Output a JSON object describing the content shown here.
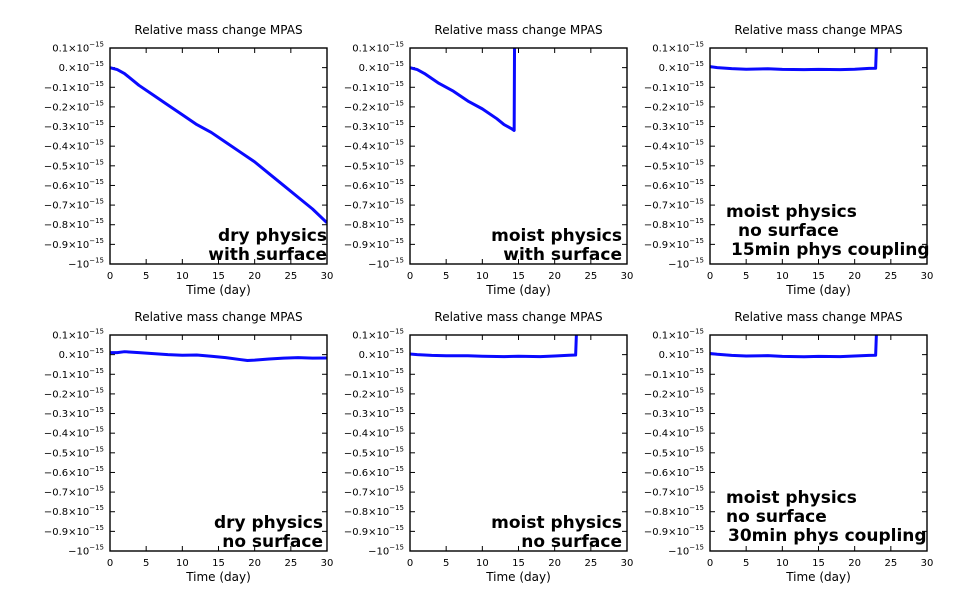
{
  "chart_data": [
    {
      "type": "line",
      "title": "Relative mass change MPAS",
      "xlabel": "Time (day)",
      "ylabel": "",
      "xlim": [
        0,
        30
      ],
      "ylim": [
        -1.0,
        0.1
      ],
      "xticks": [
        "0",
        "5",
        "10",
        "15",
        "20",
        "25",
        "30"
      ],
      "yticks": [
        "0.1×10",
        "0.×10",
        "−0.1×10",
        "−0.2×10",
        "−0.3×10",
        "−0.4×10",
        "−0.5×10",
        "−0.6×10",
        "−0.7×10",
        "−0.8×10",
        "−0.9×10",
        "−10"
      ],
      "ytick_exponent": "−15",
      "y_scale_factor": "1e-15",
      "line_color": "#0a0aff",
      "series": [
        {
          "x": [
            0,
            1,
            2,
            4,
            6,
            8,
            10,
            12,
            14,
            16,
            18,
            20,
            22,
            24,
            26,
            28,
            30
          ],
          "y": [
            0.0,
            -0.01,
            -0.03,
            -0.09,
            -0.14,
            -0.19,
            -0.24,
            -0.29,
            -0.33,
            -0.38,
            -0.43,
            -0.48,
            -0.54,
            -0.6,
            -0.66,
            -0.72,
            -0.79
          ]
        }
      ],
      "annotation": [
        "dry physics",
        "with surface"
      ]
    },
    {
      "type": "line",
      "title": "Relative mass change MPAS",
      "xlabel": "Time (day)",
      "ylabel": "",
      "xlim": [
        0,
        30
      ],
      "ylim": [
        -1.0,
        0.1
      ],
      "xticks": [
        "0",
        "5",
        "10",
        "15",
        "20",
        "25",
        "30"
      ],
      "yticks": [
        "0.1×10",
        "0.×10",
        "−0.1×10",
        "−0.2×10",
        "−0.3×10",
        "−0.4×10",
        "−0.5×10",
        "−0.6×10",
        "−0.7×10",
        "−0.8×10",
        "−0.9×10",
        "−10"
      ],
      "ytick_exponent": "−15",
      "y_scale_factor": "1e-15",
      "line_color": "#0a0aff",
      "series": [
        {
          "x": [
            0,
            1,
            2,
            4,
            6,
            8,
            10,
            12,
            13,
            14,
            14.4,
            14.45,
            14.5
          ],
          "y": [
            0.0,
            -0.01,
            -0.03,
            -0.08,
            -0.12,
            -0.17,
            -0.21,
            -0.26,
            -0.29,
            -0.31,
            -0.32,
            0.1,
            0.1
          ]
        }
      ],
      "annotation": [
        "moist physics",
        "with surface"
      ]
    },
    {
      "type": "line",
      "title": "Relative mass change MPAS",
      "xlabel": "Time (day)",
      "ylabel": "",
      "xlim": [
        0,
        30
      ],
      "ylim": [
        -1.0,
        0.1
      ],
      "xticks": [
        "0",
        "5",
        "10",
        "15",
        "20",
        "25",
        "30"
      ],
      "yticks": [
        "0.1×10",
        "0.×10",
        "−0.1×10",
        "−0.2×10",
        "−0.3×10",
        "−0.4×10",
        "−0.5×10",
        "−0.6×10",
        "−0.7×10",
        "−0.8×10",
        "−0.9×10",
        "−10"
      ],
      "ytick_exponent": "−15",
      "y_scale_factor": "1e-15",
      "line_color": "#0a0aff",
      "series": [
        {
          "x": [
            0,
            1,
            3,
            5,
            8,
            10,
            13,
            15,
            18,
            20,
            22,
            22.9,
            23,
            23.05
          ],
          "y": [
            0.005,
            0.0,
            -0.005,
            -0.008,
            -0.006,
            -0.009,
            -0.01,
            -0.009,
            -0.01,
            -0.008,
            -0.004,
            -0.003,
            0.1,
            0.1
          ]
        }
      ],
      "annotation": [
        "moist physics",
        "no surface",
        "15min phys coupling"
      ]
    },
    {
      "type": "line",
      "title": "Relative mass change MPAS",
      "xlabel": "Time (day)",
      "ylabel": "",
      "xlim": [
        0,
        30
      ],
      "ylim": [
        -1.0,
        0.1
      ],
      "xticks": [
        "0",
        "5",
        "10",
        "15",
        "20",
        "25",
        "30"
      ],
      "yticks": [
        "0.1×10",
        "0.×10",
        "−0.1×10",
        "−0.2×10",
        "−0.3×10",
        "−0.4×10",
        "−0.5×10",
        "−0.6×10",
        "−0.7×10",
        "−0.8×10",
        "−0.9×10",
        "−10"
      ],
      "ytick_exponent": "−15",
      "y_scale_factor": "1e-15",
      "line_color": "#0a0aff",
      "series": [
        {
          "x": [
            0,
            1,
            2,
            4,
            6,
            8,
            10,
            12,
            14,
            16,
            18,
            19,
            20,
            22,
            24,
            26,
            28,
            30
          ],
          "y": [
            0.01,
            0.01,
            0.015,
            0.01,
            0.005,
            0.0,
            -0.003,
            -0.002,
            -0.008,
            -0.015,
            -0.025,
            -0.03,
            -0.028,
            -0.022,
            -0.018,
            -0.015,
            -0.018,
            -0.017
          ]
        }
      ],
      "annotation": [
        "dry physics",
        "no surface"
      ]
    },
    {
      "type": "line",
      "title": "Relative mass change MPAS",
      "xlabel": "Time (day)",
      "ylabel": "",
      "xlim": [
        0,
        30
      ],
      "ylim": [
        -1.0,
        0.1
      ],
      "xticks": [
        "0",
        "5",
        "10",
        "15",
        "20",
        "25",
        "30"
      ],
      "yticks": [
        "0.1×10",
        "0.×10",
        "−0.1×10",
        "−0.2×10",
        "−0.3×10",
        "−0.4×10",
        "−0.5×10",
        "−0.6×10",
        "−0.7×10",
        "−0.8×10",
        "−0.9×10",
        "−10"
      ],
      "ytick_exponent": "−15",
      "y_scale_factor": "1e-15",
      "line_color": "#0a0aff",
      "series": [
        {
          "x": [
            0,
            1,
            3,
            5,
            8,
            10,
            13,
            15,
            18,
            20,
            22,
            22.9,
            23,
            23.05
          ],
          "y": [
            0.003,
            0.0,
            -0.004,
            -0.006,
            -0.006,
            -0.008,
            -0.01,
            -0.008,
            -0.01,
            -0.007,
            -0.003,
            -0.002,
            0.1,
            0.1
          ]
        }
      ],
      "annotation": [
        "moist physics",
        "no surface"
      ]
    },
    {
      "type": "line",
      "title": "Relative mass change MPAS",
      "xlabel": "Time (day)",
      "ylabel": "",
      "xlim": [
        0,
        30
      ],
      "ylim": [
        -1.0,
        0.1
      ],
      "xticks": [
        "0",
        "5",
        "10",
        "15",
        "20",
        "25",
        "30"
      ],
      "yticks": [
        "0.1×10",
        "0.×10",
        "−0.1×10",
        "−0.2×10",
        "−0.3×10",
        "−0.4×10",
        "−0.5×10",
        "−0.6×10",
        "−0.7×10",
        "−0.8×10",
        "−0.9×10",
        "−10"
      ],
      "ytick_exponent": "−15",
      "y_scale_factor": "1e-15",
      "line_color": "#0a0aff",
      "series": [
        {
          "x": [
            0,
            1,
            3,
            5,
            8,
            10,
            13,
            15,
            18,
            20,
            22,
            22.9,
            23,
            23.05
          ],
          "y": [
            0.006,
            0.002,
            -0.004,
            -0.007,
            -0.005,
            -0.009,
            -0.011,
            -0.009,
            -0.01,
            -0.007,
            -0.004,
            -0.003,
            0.1,
            0.1
          ]
        }
      ],
      "annotation": [
        "moist physics",
        "no surface",
        "30min phys coupling"
      ]
    }
  ]
}
